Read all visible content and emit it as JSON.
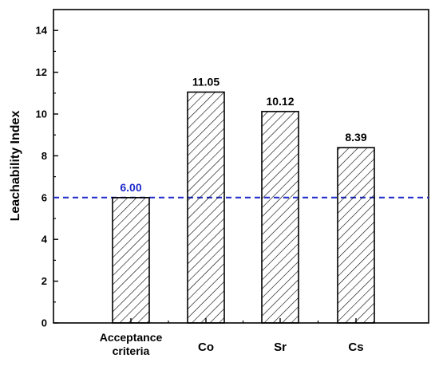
{
  "chart_data": {
    "type": "bar",
    "categories": [
      "Acceptance\ncriteria",
      "Co",
      "Sr",
      "Cs"
    ],
    "values": [
      6.0,
      11.05,
      10.12,
      8.39
    ],
    "data_labels": [
      "6.00",
      "11.05",
      "10.12",
      "8.39"
    ],
    "title": "",
    "xlabel": "",
    "ylabel": "Leachability Index",
    "ylim": [
      0,
      15
    ],
    "yticks": [
      0,
      2,
      4,
      6,
      8,
      10,
      12,
      14
    ],
    "reference_line": {
      "value": 6,
      "style": "dashed",
      "color": "#1f2bc9"
    },
    "bar_fill": "diagonal hatch",
    "bar_stroke": "#000000",
    "highlight_label_color": "#1f2bc9",
    "grid": false
  }
}
